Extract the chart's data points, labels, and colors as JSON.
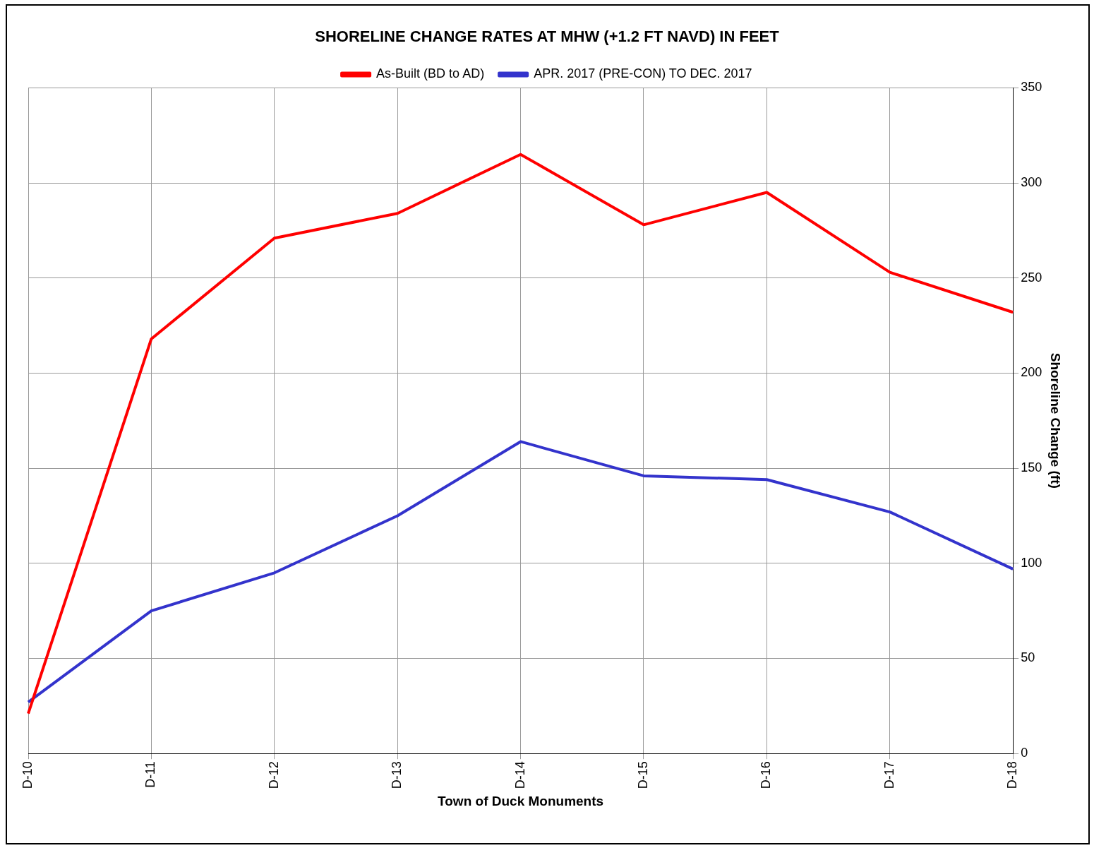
{
  "chart_data": {
    "type": "line",
    "title": "SHORELINE CHANGE RATES AT MHW (+1.2 FT NAVD) IN FEET",
    "xlabel": "Town of Duck Monuments",
    "ylabel": "Shoreline Change (ft)",
    "categories": [
      "D-10",
      "D-11",
      "D-12",
      "D-13",
      "D-14",
      "D-15",
      "D-16",
      "D-17",
      "D-18"
    ],
    "series": [
      {
        "name": "As-Built (BD to AD)",
        "color": "#ff0000",
        "values": [
          21,
          218,
          271,
          284,
          315,
          278,
          295,
          253,
          232
        ]
      },
      {
        "name": "APR. 2017 (PRE-CON) TO DEC. 2017",
        "color": "#3333cc",
        "values": [
          27,
          75,
          95,
          125,
          164,
          146,
          144,
          127,
          97
        ]
      }
    ],
    "ylim": [
      0,
      350
    ],
    "yticks": [
      0,
      50,
      100,
      150,
      200,
      250,
      300,
      350
    ],
    "grid": true,
    "legend": "top",
    "marker": "none",
    "line_style": "solid"
  }
}
